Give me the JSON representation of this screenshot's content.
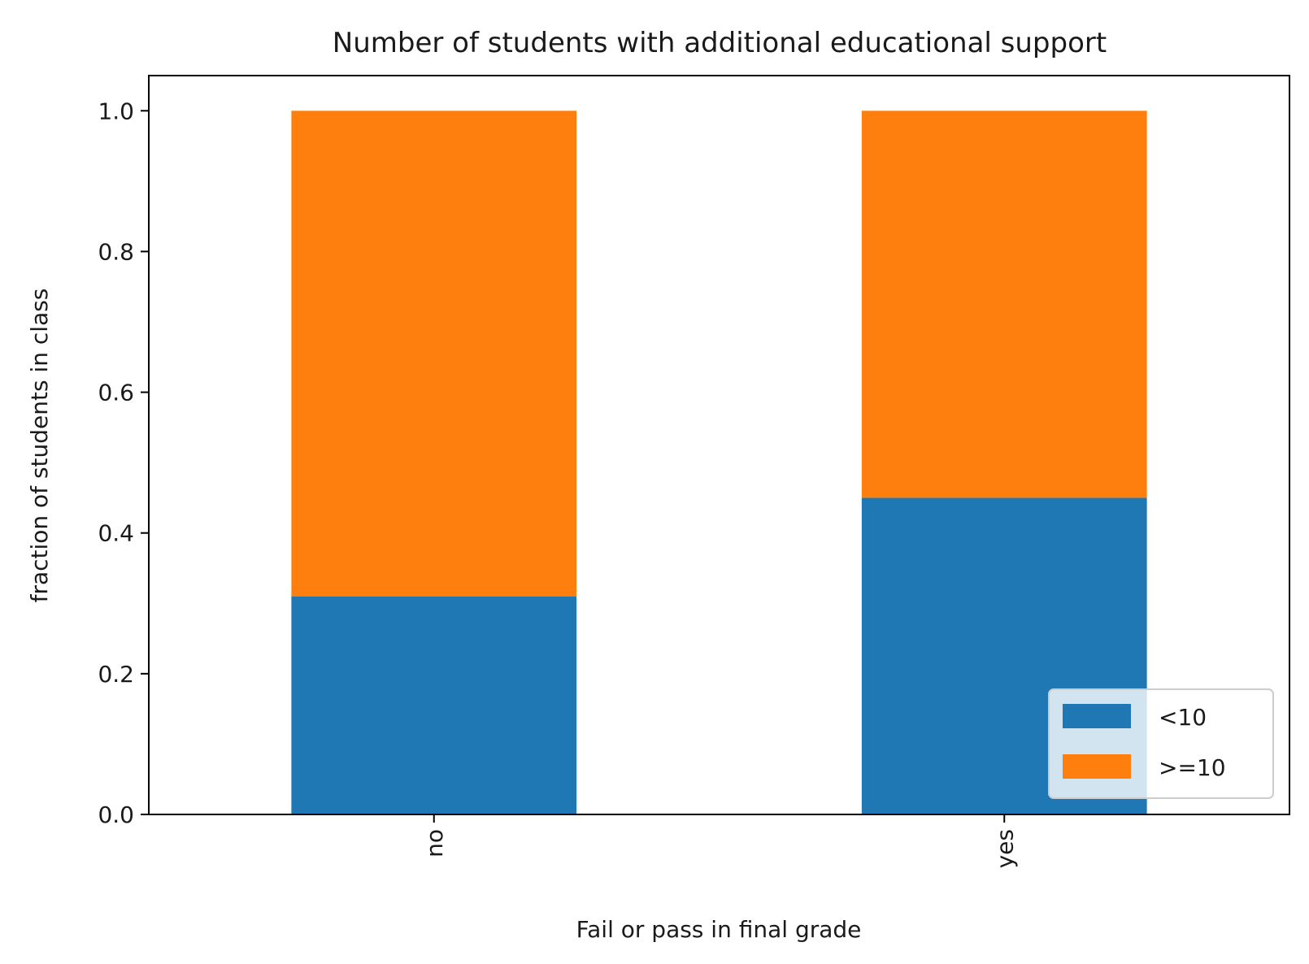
{
  "chart_data": {
    "type": "bar",
    "stacked": true,
    "title": "Number of students with additional educational support",
    "xlabel": "Fail or pass in final grade",
    "ylabel": "fraction of students in class",
    "categories": [
      "no",
      "yes"
    ],
    "series": [
      {
        "name": "<10",
        "values": [
          0.31,
          0.45
        ],
        "color": "#1f77b4"
      },
      {
        "name": ">=10",
        "values": [
          0.69,
          0.55
        ],
        "color": "#ff7f0e"
      }
    ],
    "ylim": [
      0,
      1.05
    ],
    "yticks": [
      "0.0",
      "0.2",
      "0.4",
      "0.6",
      "0.8",
      "1.0"
    ],
    "grid": false,
    "legend": "lower-right"
  }
}
